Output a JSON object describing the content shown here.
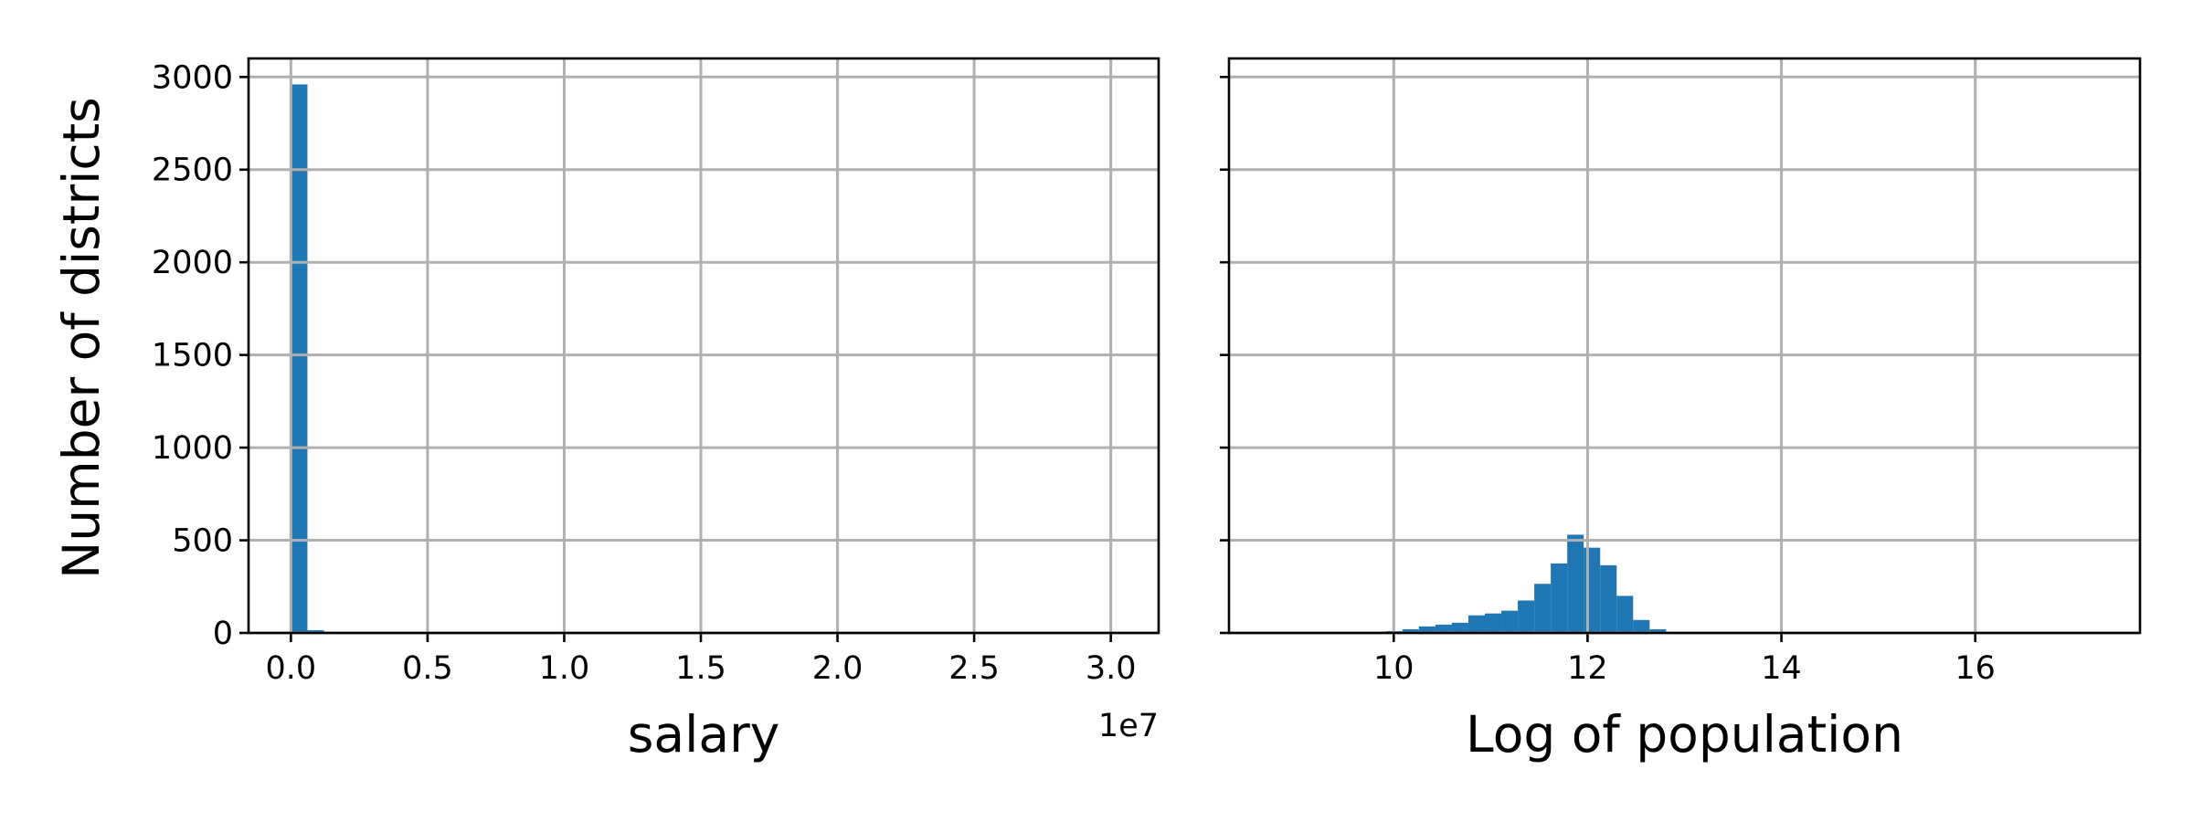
{
  "figure": {
    "ylabel": "Number of districts"
  },
  "chart_data": [
    {
      "type": "bar",
      "xlabel": "salary",
      "ylabel": "Number of districts",
      "x_offset_label": "1e7",
      "grid": true,
      "xlim": [
        -1550000,
        31750000
      ],
      "ylim": [
        0,
        3100
      ],
      "xticks": [
        0,
        5000000,
        10000000,
        15000000,
        20000000,
        25000000,
        30000000
      ],
      "xtick_labels": [
        "0.0",
        "0.5",
        "1.0",
        "1.5",
        "2.0",
        "2.5",
        "3.0"
      ],
      "yticks": [
        0,
        500,
        1000,
        1500,
        2000,
        2500,
        3000
      ],
      "ytick_labels": [
        "0",
        "500",
        "1000",
        "1500",
        "2000",
        "2500",
        "3000"
      ],
      "bar_color": "#1f77b4",
      "bin_edges": [
        0,
        605000,
        1210000,
        1815000,
        2420000
      ],
      "values": [
        2960,
        15,
        3,
        1
      ]
    },
    {
      "type": "bar",
      "xlabel": "Log of population",
      "ylabel": "",
      "grid": true,
      "xlim": [
        8.3,
        17.7
      ],
      "ylim": [
        0,
        3100
      ],
      "xticks": [
        10,
        12,
        14,
        16
      ],
      "xtick_labels": [
        "10",
        "12",
        "14",
        "16"
      ],
      "yticks": [
        0,
        500,
        1000,
        1500,
        2000,
        2500,
        3000
      ],
      "ytick_labels": [],
      "bar_color": "#1f77b4",
      "bin_edges": [
        9.75,
        9.92,
        10.09,
        10.26,
        10.43,
        10.6,
        10.77,
        10.94,
        11.11,
        11.28,
        11.45,
        11.62,
        11.79,
        11.96,
        12.13,
        12.3,
        12.47,
        12.64,
        12.81,
        12.98
      ],
      "values": [
        5,
        10,
        20,
        35,
        45,
        55,
        95,
        105,
        120,
        175,
        265,
        375,
        530,
        460,
        365,
        200,
        70,
        20,
        5
      ]
    }
  ]
}
